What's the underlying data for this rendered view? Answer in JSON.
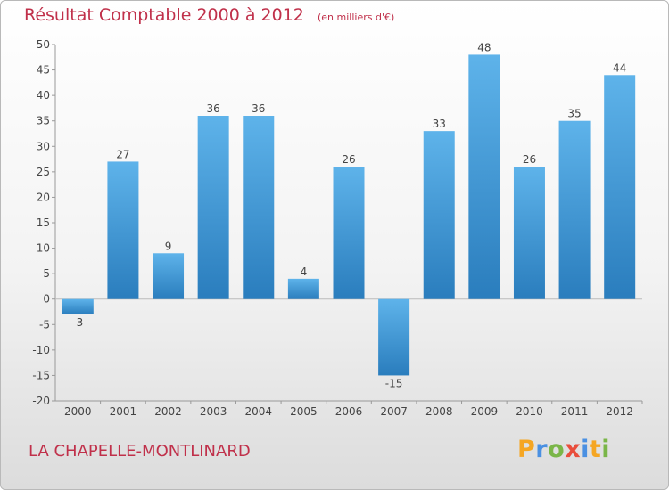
{
  "header": {
    "title": "Résultat Comptable 2000 à 2012",
    "unit": "(en milliers d'€)"
  },
  "footer": {
    "commune": "LA CHAPELLE-MONTLINARD",
    "logo": "Proxiti"
  },
  "colors": {
    "bar_top": "#5eb3ea",
    "bar_bottom": "#2a7dbd",
    "title": "#c0304a",
    "grid": "#d0d0d0"
  },
  "chart_data": {
    "type": "bar",
    "title": "Résultat Comptable 2000 à 2012",
    "subtitle": "(en milliers d'€)",
    "xlabel": "",
    "ylabel": "",
    "categories": [
      "2000",
      "2001",
      "2002",
      "2003",
      "2004",
      "2005",
      "2006",
      "2007",
      "2008",
      "2009",
      "2010",
      "2011",
      "2012"
    ],
    "values": [
      -3,
      27,
      9,
      36,
      36,
      4,
      26,
      -15,
      33,
      48,
      26,
      35,
      44
    ],
    "ylim": [
      -20,
      50
    ],
    "yticks": [
      50,
      45,
      40,
      35,
      30,
      25,
      20,
      15,
      10,
      5,
      0,
      -5,
      -10,
      -15,
      -20
    ],
    "grid": false
  }
}
